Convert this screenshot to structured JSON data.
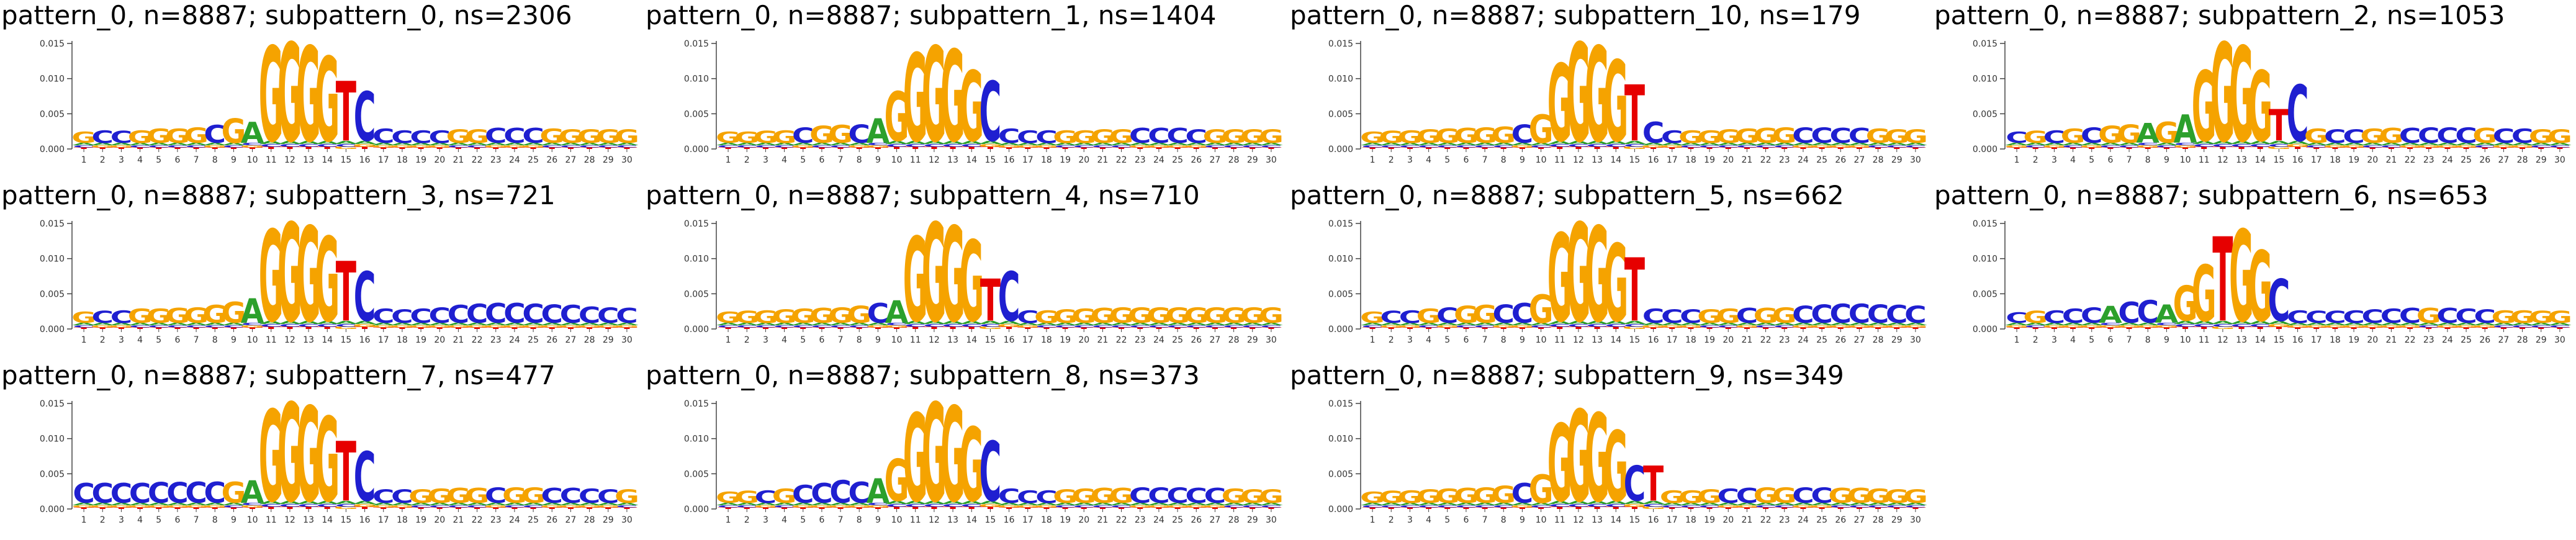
{
  "figure": {
    "colors": {
      "A": "#2ca02c",
      "C": "#1f1fd0",
      "G": "#f5a300",
      "T": "#e60000"
    }
  },
  "chart_data": [
    {
      "type": "sequence-logo",
      "title": "pattern_0, n=8887; subpattern_0, ns=2306",
      "x": [
        1,
        2,
        3,
        4,
        5,
        6,
        7,
        8,
        9,
        10,
        11,
        12,
        13,
        14,
        15,
        16,
        17,
        18,
        19,
        20,
        21,
        22,
        23,
        24,
        25,
        26,
        27,
        28,
        29,
        30
      ],
      "ylim": [
        0,
        0.015
      ],
      "yticks": [
        "0.000",
        "0.005",
        "0.010",
        "0.015"
      ],
      "top_letters": [
        "G",
        "C",
        "C",
        "G",
        "G",
        "G",
        "G",
        "C",
        "G",
        "A",
        "G",
        "G",
        "G",
        "G",
        "T",
        "C",
        "C",
        "C",
        "C",
        "C",
        "G",
        "G",
        "C",
        "C",
        "C",
        "G",
        "G",
        "G",
        "G",
        "G"
      ],
      "top_heights": [
        0.0016,
        0.0018,
        0.0017,
        0.0018,
        0.002,
        0.002,
        0.0022,
        0.0025,
        0.0035,
        0.003,
        0.0135,
        0.014,
        0.0135,
        0.012,
        0.0085,
        0.007,
        0.002,
        0.0018,
        0.0018,
        0.0018,
        0.0019,
        0.0019,
        0.0021,
        0.0021,
        0.0021,
        0.002,
        0.0019,
        0.0019,
        0.0019,
        0.0019
      ]
    },
    {
      "type": "sequence-logo",
      "title": "pattern_0, n=8887; subpattern_1, ns=1404",
      "x": [
        1,
        2,
        3,
        4,
        5,
        6,
        7,
        8,
        9,
        10,
        11,
        12,
        13,
        14,
        15,
        16,
        17,
        18,
        19,
        20,
        21,
        22,
        23,
        24,
        25,
        26,
        27,
        28,
        29,
        30
      ],
      "ylim": [
        0,
        0.015
      ],
      "yticks": [
        "0.000",
        "0.005",
        "0.010",
        "0.015"
      ],
      "top_letters": [
        "G",
        "G",
        "G",
        "G",
        "C",
        "G",
        "G",
        "C",
        "A",
        "G",
        "G",
        "G",
        "G",
        "G",
        "C",
        "C",
        "C",
        "C",
        "G",
        "G",
        "G",
        "G",
        "C",
        "C",
        "C",
        "C",
        "G",
        "G",
        "G",
        "G"
      ],
      "top_heights": [
        0.0016,
        0.0016,
        0.0017,
        0.0018,
        0.0022,
        0.0024,
        0.0025,
        0.0026,
        0.0035,
        0.007,
        0.0125,
        0.0135,
        0.013,
        0.01,
        0.0085,
        0.002,
        0.0018,
        0.0018,
        0.0018,
        0.0018,
        0.0019,
        0.0019,
        0.0021,
        0.0021,
        0.0021,
        0.0019,
        0.0019,
        0.0019,
        0.0019,
        0.0019
      ]
    },
    {
      "type": "sequence-logo",
      "title": "pattern_0, n=8887; subpattern_10, ns=179",
      "x": [
        1,
        2,
        3,
        4,
        5,
        6,
        7,
        8,
        9,
        10,
        11,
        12,
        13,
        14,
        15,
        16,
        17,
        18,
        19,
        20,
        21,
        22,
        23,
        24,
        25,
        26,
        27,
        28,
        29,
        30
      ],
      "ylim": [
        0,
        0.015
      ],
      "yticks": [
        "0.000",
        "0.005",
        "0.010",
        "0.015"
      ],
      "top_letters": [
        "G",
        "G",
        "G",
        "G",
        "G",
        "G",
        "G",
        "G",
        "C",
        "G",
        "G",
        "G",
        "G",
        "G",
        "T",
        "C",
        "C",
        "G",
        "G",
        "G",
        "G",
        "G",
        "G",
        "C",
        "C",
        "C",
        "C",
        "G",
        "G",
        "G"
      ],
      "top_heights": [
        0.0016,
        0.0017,
        0.0018,
        0.0019,
        0.002,
        0.0021,
        0.0022,
        0.0023,
        0.0026,
        0.004,
        0.011,
        0.014,
        0.0135,
        0.0115,
        0.008,
        0.003,
        0.0018,
        0.0018,
        0.0018,
        0.0019,
        0.002,
        0.0021,
        0.0022,
        0.0022,
        0.0022,
        0.0021,
        0.0021,
        0.002,
        0.0019,
        0.0019
      ]
    },
    {
      "type": "sequence-logo",
      "title": "pattern_0, n=8887; subpattern_2, ns=1053",
      "x": [
        1,
        2,
        3,
        4,
        5,
        6,
        7,
        8,
        9,
        10,
        11,
        12,
        13,
        14,
        15,
        16,
        17,
        18,
        19,
        20,
        21,
        22,
        23,
        24,
        25,
        26,
        27,
        28,
        29,
        30
      ],
      "ylim": [
        0,
        0.015
      ],
      "yticks": [
        "0.000",
        "0.005",
        "0.010",
        "0.015"
      ],
      "top_letters": [
        "C",
        "G",
        "C",
        "G",
        "C",
        "G",
        "G",
        "A",
        "G",
        "A",
        "G",
        "G",
        "G",
        "G",
        "T",
        "C",
        "G",
        "C",
        "C",
        "G",
        "G",
        "C",
        "C",
        "C",
        "C",
        "G",
        "C",
        "C",
        "G",
        "G"
      ],
      "top_heights": [
        0.0016,
        0.0017,
        0.0018,
        0.002,
        0.0022,
        0.0024,
        0.0026,
        0.0028,
        0.003,
        0.004,
        0.01,
        0.014,
        0.0135,
        0.01,
        0.0045,
        0.008,
        0.002,
        0.0019,
        0.0019,
        0.002,
        0.0021,
        0.0021,
        0.0022,
        0.0022,
        0.0022,
        0.0021,
        0.002,
        0.002,
        0.0019,
        0.0019
      ]
    },
    {
      "type": "sequence-logo",
      "title": "pattern_0, n=8887; subpattern_3, ns=721",
      "x": [
        1,
        2,
        3,
        4,
        5,
        6,
        7,
        8,
        9,
        10,
        11,
        12,
        13,
        14,
        15,
        16,
        17,
        18,
        19,
        20,
        21,
        22,
        23,
        24,
        25,
        26,
        27,
        28,
        29,
        30
      ],
      "ylim": [
        0,
        0.015
      ],
      "yticks": [
        "0.000",
        "0.005",
        "0.010",
        "0.015"
      ],
      "top_letters": [
        "G",
        "C",
        "C",
        "G",
        "G",
        "G",
        "G",
        "G",
        "G",
        "A",
        "G",
        "G",
        "G",
        "G",
        "T",
        "C",
        "C",
        "C",
        "C",
        "C",
        "C",
        "C",
        "C",
        "C",
        "C",
        "C",
        "C",
        "C",
        "C",
        "C"
      ],
      "top_heights": [
        0.0016,
        0.0017,
        0.0018,
        0.002,
        0.002,
        0.0021,
        0.0022,
        0.0025,
        0.003,
        0.0035,
        0.013,
        0.014,
        0.0135,
        0.012,
        0.0085,
        0.007,
        0.002,
        0.0019,
        0.002,
        0.0022,
        0.0025,
        0.0027,
        0.0028,
        0.0028,
        0.0027,
        0.0026,
        0.0025,
        0.0023,
        0.0022,
        0.0021
      ]
    },
    {
      "type": "sequence-logo",
      "title": "pattern_0, n=8887; subpattern_4, ns=710",
      "x": [
        1,
        2,
        3,
        4,
        5,
        6,
        7,
        8,
        9,
        10,
        11,
        12,
        13,
        14,
        15,
        16,
        17,
        18,
        19,
        20,
        21,
        22,
        23,
        24,
        25,
        26,
        27,
        28,
        29,
        30
      ],
      "ylim": [
        0,
        0.015
      ],
      "yticks": [
        "0.000",
        "0.005",
        "0.010",
        "0.015"
      ],
      "top_letters": [
        "G",
        "G",
        "G",
        "G",
        "G",
        "G",
        "G",
        "G",
        "C",
        "A",
        "G",
        "G",
        "G",
        "G",
        "T",
        "C",
        "C",
        "G",
        "G",
        "G",
        "G",
        "G",
        "G",
        "G",
        "G",
        "G",
        "G",
        "G",
        "G",
        "G"
      ],
      "top_heights": [
        0.0016,
        0.0017,
        0.0018,
        0.0019,
        0.002,
        0.0021,
        0.0022,
        0.0024,
        0.0028,
        0.0032,
        0.012,
        0.014,
        0.0135,
        0.0115,
        0.006,
        0.007,
        0.0018,
        0.0018,
        0.0019,
        0.002,
        0.0021,
        0.0022,
        0.0022,
        0.0022,
        0.0022,
        0.0022,
        0.0022,
        0.0022,
        0.0022,
        0.0022
      ]
    },
    {
      "type": "sequence-logo",
      "title": "pattern_0, n=8887; subpattern_5, ns=662",
      "x": [
        1,
        2,
        3,
        4,
        5,
        6,
        7,
        8,
        9,
        10,
        11,
        12,
        13,
        14,
        15,
        16,
        17,
        18,
        19,
        20,
        21,
        22,
        23,
        24,
        25,
        26,
        27,
        28,
        29,
        30
      ],
      "ylim": [
        0,
        0.015
      ],
      "yticks": [
        "0.000",
        "0.005",
        "0.010",
        "0.015"
      ],
      "top_letters": [
        "G",
        "C",
        "C",
        "G",
        "C",
        "G",
        "G",
        "C",
        "C",
        "G",
        "G",
        "G",
        "G",
        "G",
        "T",
        "C",
        "C",
        "C",
        "G",
        "G",
        "C",
        "G",
        "G",
        "C",
        "C",
        "C",
        "C",
        "C",
        "C",
        "C"
      ],
      "top_heights": [
        0.0016,
        0.0017,
        0.0018,
        0.002,
        0.0022,
        0.0024,
        0.0025,
        0.0026,
        0.0028,
        0.004,
        0.0125,
        0.014,
        0.0135,
        0.011,
        0.009,
        0.002,
        0.0019,
        0.0019,
        0.0019,
        0.002,
        0.0021,
        0.0021,
        0.0022,
        0.0024,
        0.0026,
        0.0027,
        0.0027,
        0.0026,
        0.0025,
        0.0024
      ]
    },
    {
      "type": "sequence-logo",
      "title": "pattern_0, n=8887; subpattern_6, ns=653",
      "x": [
        1,
        2,
        3,
        4,
        5,
        6,
        7,
        8,
        9,
        10,
        11,
        12,
        13,
        14,
        15,
        16,
        17,
        18,
        19,
        20,
        21,
        22,
        23,
        24,
        25,
        26,
        27,
        28,
        29,
        30
      ],
      "ylim": [
        0,
        0.015
      ],
      "yticks": [
        "0.000",
        "0.005",
        "0.010",
        "0.015"
      ],
      "top_letters": [
        "C",
        "G",
        "C",
        "C",
        "C",
        "A",
        "C",
        "C",
        "A",
        "G",
        "G",
        "T",
        "G",
        "G",
        "C",
        "C",
        "C",
        "C",
        "C",
        "C",
        "C",
        "C",
        "G",
        "C",
        "C",
        "C",
        "G",
        "G",
        "G",
        "G"
      ],
      "top_heights": [
        0.0015,
        0.0017,
        0.0018,
        0.002,
        0.0022,
        0.0024,
        0.003,
        0.0032,
        0.0026,
        0.005,
        0.008,
        0.012,
        0.013,
        0.01,
        0.006,
        0.0018,
        0.0017,
        0.0017,
        0.0018,
        0.0019,
        0.002,
        0.0021,
        0.0021,
        0.0021,
        0.002,
        0.0019,
        0.0018,
        0.0018,
        0.0017,
        0.0017
      ]
    },
    {
      "type": "sequence-logo",
      "title": "pattern_0, n=8887; subpattern_7, ns=477",
      "x": [
        1,
        2,
        3,
        4,
        5,
        6,
        7,
        8,
        9,
        10,
        11,
        12,
        13,
        14,
        15,
        16,
        17,
        18,
        19,
        20,
        21,
        22,
        23,
        24,
        25,
        26,
        27,
        28,
        29,
        30
      ],
      "ylim": [
        0,
        0.015
      ],
      "yticks": [
        "0.000",
        "0.005",
        "0.010",
        "0.015"
      ],
      "top_letters": [
        "C",
        "C",
        "C",
        "C",
        "C",
        "C",
        "C",
        "C",
        "G",
        "A",
        "G",
        "G",
        "G",
        "G",
        "T",
        "C",
        "C",
        "C",
        "G",
        "G",
        "G",
        "G",
        "C",
        "G",
        "G",
        "C",
        "C",
        "C",
        "C",
        "G"
      ],
      "top_heights": [
        0.0028,
        0.0028,
        0.0028,
        0.0028,
        0.0029,
        0.0029,
        0.003,
        0.003,
        0.003,
        0.0032,
        0.013,
        0.014,
        0.0135,
        0.012,
        0.0085,
        0.007,
        0.0019,
        0.0019,
        0.0019,
        0.002,
        0.0021,
        0.0021,
        0.0022,
        0.0022,
        0.0022,
        0.0021,
        0.0021,
        0.002,
        0.0019,
        0.0019
      ]
    },
    {
      "type": "sequence-logo",
      "title": "pattern_0, n=8887; subpattern_8, ns=373",
      "x": [
        1,
        2,
        3,
        4,
        5,
        6,
        7,
        8,
        9,
        10,
        11,
        12,
        13,
        14,
        15,
        16,
        17,
        18,
        19,
        20,
        21,
        22,
        23,
        24,
        25,
        26,
        27,
        28,
        29,
        30
      ],
      "ylim": [
        0,
        0.015
      ],
      "yticks": [
        "0.000",
        "0.005",
        "0.010",
        "0.015"
      ],
      "top_letters": [
        "G",
        "G",
        "C",
        "G",
        "C",
        "C",
        "C",
        "C",
        "A",
        "G",
        "G",
        "G",
        "G",
        "G",
        "C",
        "C",
        "C",
        "C",
        "G",
        "G",
        "G",
        "G",
        "C",
        "C",
        "C",
        "C",
        "C",
        "G",
        "G",
        "G"
      ],
      "top_heights": [
        0.0016,
        0.0017,
        0.0018,
        0.002,
        0.0025,
        0.0028,
        0.0032,
        0.003,
        0.0035,
        0.006,
        0.0125,
        0.014,
        0.0135,
        0.0105,
        0.0085,
        0.002,
        0.0018,
        0.0018,
        0.0019,
        0.002,
        0.0021,
        0.0021,
        0.0022,
        0.0022,
        0.0022,
        0.0021,
        0.0021,
        0.002,
        0.0019,
        0.0019
      ]
    },
    {
      "type": "sequence-logo",
      "title": "pattern_0, n=8887; subpattern_9, ns=349",
      "x": [
        1,
        2,
        3,
        4,
        5,
        6,
        7,
        8,
        9,
        10,
        11,
        12,
        13,
        14,
        15,
        16,
        17,
        18,
        19,
        20,
        21,
        22,
        23,
        24,
        25,
        26,
        27,
        28,
        29,
        30
      ],
      "ylim": [
        0,
        0.015
      ],
      "yticks": [
        "0.000",
        "0.005",
        "0.010",
        "0.015"
      ],
      "top_letters": [
        "G",
        "G",
        "G",
        "G",
        "G",
        "G",
        "G",
        "G",
        "C",
        "G",
        "G",
        "G",
        "G",
        "G",
        "C",
        "T",
        "G",
        "G",
        "G",
        "C",
        "C",
        "G",
        "G",
        "C",
        "C",
        "G",
        "G",
        "G",
        "G",
        "G"
      ],
      "top_heights": [
        0.0016,
        0.0017,
        0.0018,
        0.0019,
        0.002,
        0.0021,
        0.0022,
        0.0024,
        0.0028,
        0.004,
        0.011,
        0.013,
        0.0125,
        0.01,
        0.005,
        0.005,
        0.0018,
        0.0018,
        0.0019,
        0.002,
        0.0021,
        0.0022,
        0.0022,
        0.0022,
        0.0022,
        0.0021,
        0.0021,
        0.002,
        0.0019,
        0.0019
      ]
    }
  ]
}
